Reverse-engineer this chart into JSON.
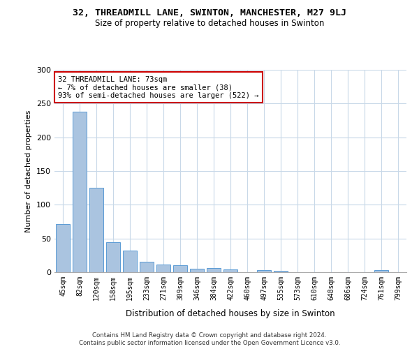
{
  "title_line1": "32, THREADMILL LANE, SWINTON, MANCHESTER, M27 9LJ",
  "title_line2": "Size of property relative to detached houses in Swinton",
  "xlabel": "Distribution of detached houses by size in Swinton",
  "ylabel": "Number of detached properties",
  "categories": [
    "45sqm",
    "82sqm",
    "120sqm",
    "158sqm",
    "195sqm",
    "233sqm",
    "271sqm",
    "309sqm",
    "346sqm",
    "384sqm",
    "422sqm",
    "460sqm",
    "497sqm",
    "535sqm",
    "573sqm",
    "610sqm",
    "648sqm",
    "686sqm",
    "724sqm",
    "761sqm",
    "799sqm"
  ],
  "values": [
    71,
    238,
    125,
    44,
    32,
    16,
    11,
    10,
    5,
    6,
    4,
    0,
    3,
    2,
    0,
    0,
    0,
    0,
    0,
    3,
    0
  ],
  "bar_color": "#aac4e0",
  "bar_edge_color": "#5b9bd5",
  "annotation_text": "32 THREADMILL LANE: 73sqm\n← 7% of detached houses are smaller (38)\n93% of semi-detached houses are larger (522) →",
  "annotation_box_color": "#ffffff",
  "annotation_box_edge": "#cc0000",
  "ylim": [
    0,
    300
  ],
  "yticks": [
    0,
    50,
    100,
    150,
    200,
    250,
    300
  ],
  "footnote1": "Contains HM Land Registry data © Crown copyright and database right 2024.",
  "footnote2": "Contains public sector information licensed under the Open Government Licence v3.0.",
  "highlight_bar_index": 1,
  "background_color": "#ffffff",
  "grid_color": "#c8d8e8"
}
